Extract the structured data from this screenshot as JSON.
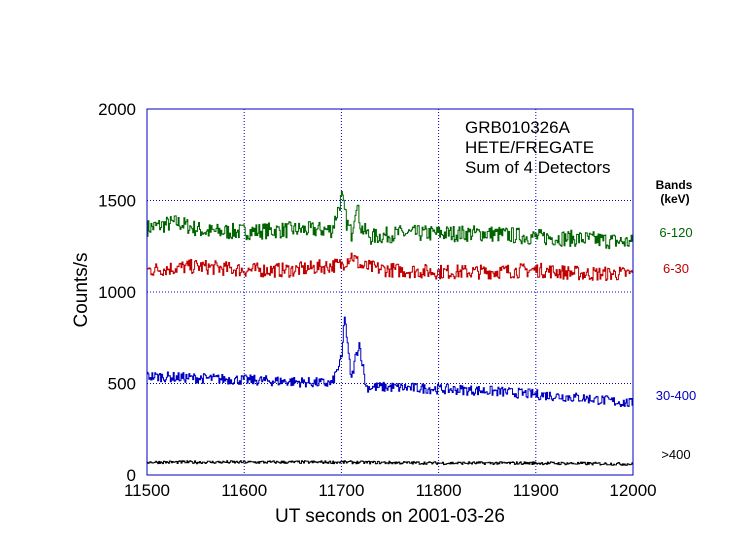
{
  "chart_data": {
    "type": "line",
    "title": "",
    "annotation_lines": [
      "GRB010326A",
      "HETE/FREGATE",
      "Sum of 4 Detectors"
    ],
    "xlabel": "UT seconds on 2001-03-26",
    "ylabel": "Counts/s",
    "xlim": [
      11500,
      12000
    ],
    "ylim": [
      0,
      2000
    ],
    "xticks": [
      "11500",
      "11600",
      "11700",
      "11800",
      "11900",
      "12000"
    ],
    "yticks": [
      "0",
      "500",
      "1000",
      "1500",
      "2000"
    ],
    "grid": "dotted",
    "legend": {
      "title_line1": "Bands",
      "title_line2": "(keV)",
      "placement": "right"
    },
    "series": [
      {
        "name": "6-120",
        "color": "#006400",
        "x": [
          11500,
          11530,
          11560,
          11600,
          11650,
          11690,
          11700,
          11705,
          11710,
          11715,
          11720,
          11730,
          11760,
          11800,
          11850,
          11900,
          11950,
          12000
        ],
        "y": [
          1350,
          1380,
          1330,
          1330,
          1340,
          1340,
          1520,
          1380,
          1320,
          1490,
          1350,
          1300,
          1320,
          1320,
          1320,
          1300,
          1290,
          1270
        ]
      },
      {
        "name": "6-30",
        "color": "#c00000",
        "x": [
          11500,
          11550,
          11600,
          11650,
          11700,
          11710,
          11720,
          11750,
          11800,
          11850,
          11900,
          11950,
          12000
        ],
        "y": [
          1120,
          1140,
          1120,
          1120,
          1150,
          1200,
          1140,
          1120,
          1110,
          1110,
          1120,
          1100,
          1100
        ]
      },
      {
        "name": "30-400",
        "color": "#0000c0",
        "x": [
          11500,
          11550,
          11600,
          11650,
          11690,
          11700,
          11703,
          11706,
          11710,
          11714,
          11718,
          11725,
          11750,
          11800,
          11850,
          11900,
          11950,
          12000
        ],
        "y": [
          540,
          530,
          520,
          510,
          500,
          640,
          880,
          700,
          520,
          640,
          720,
          480,
          480,
          470,
          460,
          440,
          420,
          390
        ]
      },
      {
        "name": ">400",
        "color": "#000000",
        "x": [
          11500,
          11600,
          11700,
          11800,
          11900,
          12000
        ],
        "y": [
          70,
          70,
          70,
          65,
          65,
          60
        ]
      }
    ]
  }
}
